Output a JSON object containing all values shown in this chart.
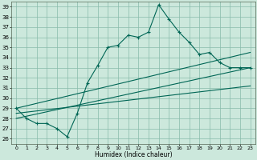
{
  "title": "",
  "xlabel": "Humidex (Indice chaleur)",
  "bg_color": "#cce8dc",
  "grid_color": "#88bbaa",
  "line_color": "#006655",
  "xlim": [
    -0.5,
    23.5
  ],
  "ylim": [
    25.5,
    39.5
  ],
  "yticks": [
    26,
    27,
    28,
    29,
    30,
    31,
    32,
    33,
    34,
    35,
    36,
    37,
    38,
    39
  ],
  "xticks": [
    0,
    1,
    2,
    3,
    4,
    5,
    6,
    7,
    8,
    9,
    10,
    11,
    12,
    13,
    14,
    15,
    16,
    17,
    18,
    19,
    20,
    21,
    22,
    23
  ],
  "main_x": [
    0,
    1,
    2,
    3,
    4,
    5,
    6,
    7,
    8,
    9,
    10,
    11,
    12,
    13,
    14,
    15,
    16,
    17,
    18,
    19,
    20,
    21,
    22,
    23
  ],
  "main_y": [
    29.0,
    28.0,
    27.5,
    27.5,
    27.0,
    26.2,
    28.5,
    31.5,
    33.2,
    35.0,
    35.2,
    36.2,
    36.0,
    36.5,
    39.2,
    37.8,
    36.5,
    35.5,
    34.3,
    34.5,
    33.5,
    33.0,
    33.0,
    33.0
  ],
  "env_lines": [
    {
      "x": [
        0,
        23
      ],
      "y": [
        29.0,
        34.5
      ]
    },
    {
      "x": [
        0,
        23
      ],
      "y": [
        28.0,
        33.0
      ]
    },
    {
      "x": [
        0,
        23
      ],
      "y": [
        28.5,
        31.2
      ]
    }
  ]
}
